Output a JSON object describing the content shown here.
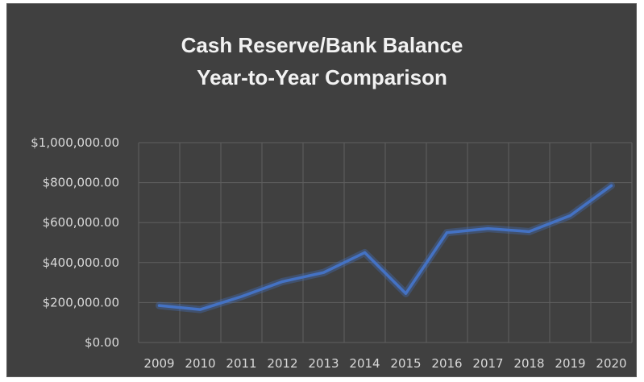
{
  "chart_data": {
    "type": "line",
    "title": "Cash Reserve/Bank Balance",
    "subtitle": "Year-to-Year Comparison",
    "x": [
      "2009",
      "2010",
      "2011",
      "2012",
      "2013",
      "2014",
      "2015",
      "2016",
      "2017",
      "2018",
      "2019",
      "2020"
    ],
    "series": [
      {
        "values": [
          185000,
          165000,
          230000,
          305000,
          350000,
          450000,
          245000,
          550000,
          570000,
          555000,
          635000,
          785000
        ]
      }
    ],
    "ylim": [
      0,
      1000000
    ],
    "yticks": [
      "$0.00",
      "$200,000.00",
      "$400,000.00",
      "$600,000.00",
      "$800,000.00",
      "$1,000,000.00"
    ],
    "grid": true,
    "colors": {
      "background": "#404040",
      "line": "#4472c4",
      "grid": "#5f5f5f",
      "text": "#d9d9d9"
    }
  }
}
